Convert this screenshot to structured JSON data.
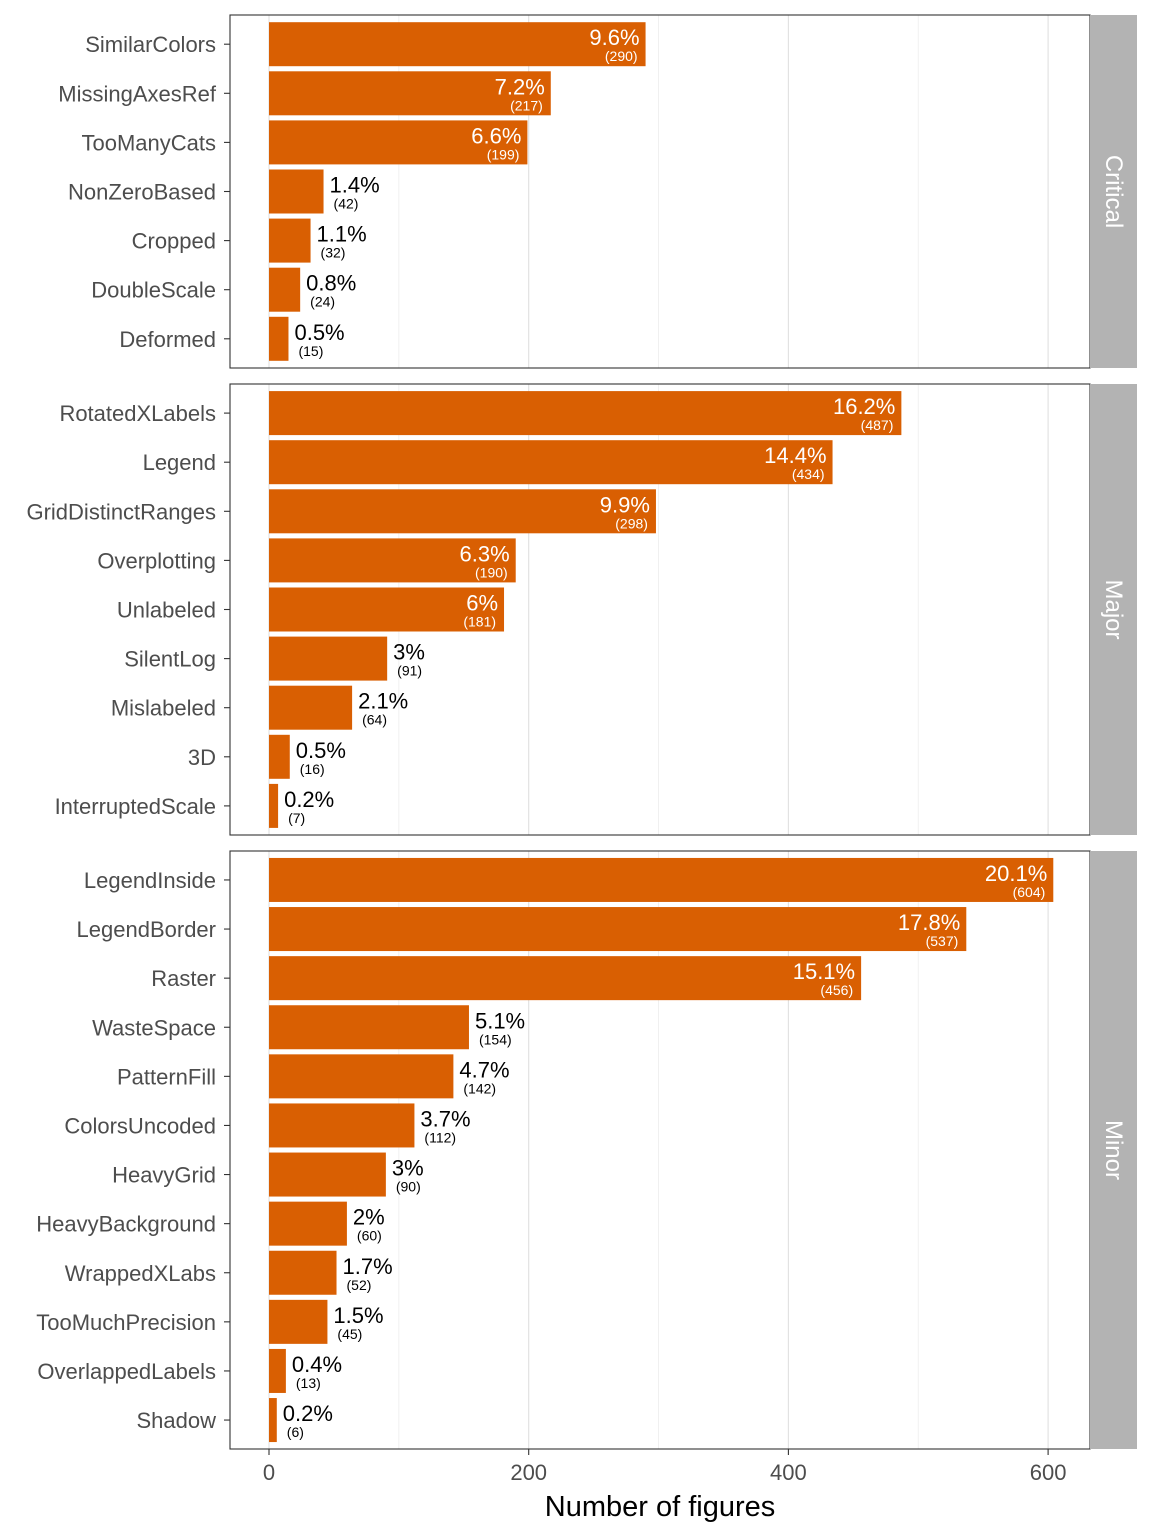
{
  "chart_data": {
    "type": "bar",
    "orientation": "horizontal",
    "facet_layout": "rows, strip labels on right",
    "xlabel": "Number of figures",
    "ylabel": "",
    "xlim": [
      0,
      630
    ],
    "x_ticks": [
      0,
      200,
      400,
      600
    ],
    "grid": true,
    "bar_color": "#d95f02",
    "strip_color": "#b3b3b3",
    "panels": [
      {
        "name": "Critical",
        "categories": [
          "SimilarColors",
          "MissingAxesRef",
          "TooManyCats",
          "NonZeroBased",
          "Cropped",
          "DoubleScale",
          "Deformed"
        ],
        "values": [
          290,
          217,
          199,
          42,
          32,
          24,
          15
        ],
        "percent_labels": [
          "9.6%",
          "7.2%",
          "6.6%",
          "1.4%",
          "1.1%",
          "0.8%",
          "0.5%"
        ],
        "count_labels": [
          "(290)",
          "(217)",
          "(199)",
          "(42)",
          "(32)",
          "(24)",
          "(15)"
        ]
      },
      {
        "name": "Major",
        "categories": [
          "RotatedXLabels",
          "Legend",
          "GridDistinctRanges",
          "Overplotting",
          "Unlabeled",
          "SilentLog",
          "Mislabeled",
          "3D",
          "InterruptedScale"
        ],
        "values": [
          487,
          434,
          298,
          190,
          181,
          91,
          64,
          16,
          7
        ],
        "percent_labels": [
          "16.2%",
          "14.4%",
          "9.9%",
          "6.3%",
          "6%",
          "3%",
          "2.1%",
          "0.5%",
          "0.2%"
        ],
        "count_labels": [
          "(487)",
          "(434)",
          "(298)",
          "(190)",
          "(181)",
          "(91)",
          "(64)",
          "(16)",
          "(7)"
        ]
      },
      {
        "name": "Minor",
        "categories": [
          "LegendInside",
          "LegendBorder",
          "Raster",
          "WasteSpace",
          "PatternFill",
          "ColorsUncoded",
          "HeavyGrid",
          "HeavyBackground",
          "WrappedXLabs",
          "TooMuchPrecision",
          "OverlappedLabels",
          "Shadow"
        ],
        "values": [
          604,
          537,
          456,
          154,
          142,
          112,
          90,
          60,
          52,
          45,
          13,
          6
        ],
        "percent_labels": [
          "20.1%",
          "17.8%",
          "15.1%",
          "5.1%",
          "4.7%",
          "3.7%",
          "3%",
          "2%",
          "1.7%",
          "1.5%",
          "0.4%",
          "0.2%"
        ],
        "count_labels": [
          "(604)",
          "(537)",
          "(456)",
          "(154)",
          "(142)",
          "(112)",
          "(90)",
          "(60)",
          "(52)",
          "(45)",
          "(13)",
          "(6)"
        ]
      }
    ]
  }
}
